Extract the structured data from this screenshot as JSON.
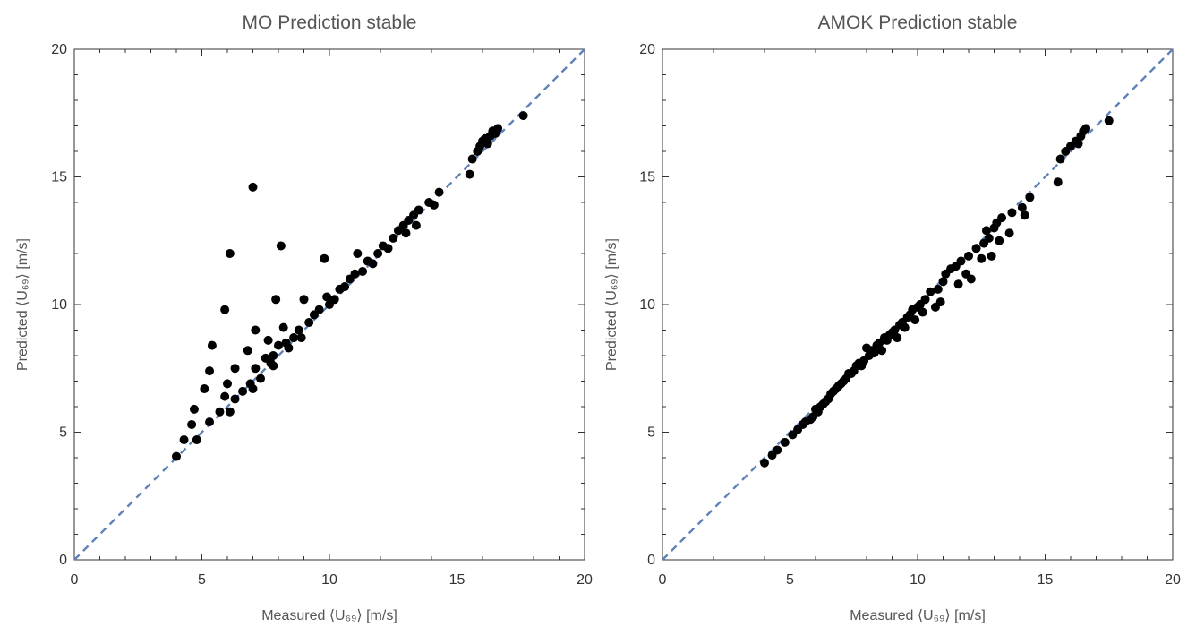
{
  "chart_data": [
    {
      "type": "scatter",
      "title": "MO Prediction stable",
      "xlabel": "Measured ⟨U₆₉⟩ [m/s]",
      "ylabel": "Predicted ⟨U₆₉⟩ [m/s]",
      "xlim": [
        0,
        20
      ],
      "ylim": [
        0,
        20
      ],
      "xticks": [
        0,
        5,
        10,
        15,
        20
      ],
      "yticks": [
        0,
        5,
        10,
        15,
        20
      ],
      "reference_line": "y = x, dashed, color #5f82b8",
      "grid": false,
      "legend": "none",
      "series": [
        {
          "marker_color": "#000000",
          "points": [
            [
              4.0,
              4.05
            ],
            [
              4.3,
              4.7
            ],
            [
              4.6,
              5.3
            ],
            [
              4.7,
              5.9
            ],
            [
              4.8,
              4.7
            ],
            [
              5.1,
              6.7
            ],
            [
              5.3,
              7.4
            ],
            [
              5.3,
              5.4
            ],
            [
              5.4,
              8.4
            ],
            [
              5.7,
              5.8
            ],
            [
              5.9,
              6.4
            ],
            [
              5.9,
              9.8
            ],
            [
              6.0,
              6.9
            ],
            [
              6.1,
              5.8
            ],
            [
              6.1,
              12.0
            ],
            [
              6.3,
              7.5
            ],
            [
              6.3,
              6.3
            ],
            [
              6.6,
              6.6
            ],
            [
              6.8,
              8.2
            ],
            [
              6.9,
              6.9
            ],
            [
              7.0,
              14.6
            ],
            [
              7.0,
              6.7
            ],
            [
              7.1,
              9.0
            ],
            [
              7.1,
              7.5
            ],
            [
              7.3,
              7.1
            ],
            [
              7.5,
              7.9
            ],
            [
              7.6,
              8.6
            ],
            [
              7.7,
              7.7
            ],
            [
              7.8,
              8.0
            ],
            [
              7.8,
              7.6
            ],
            [
              7.9,
              10.2
            ],
            [
              8.0,
              8.4
            ],
            [
              8.1,
              12.3
            ],
            [
              8.2,
              9.1
            ],
            [
              8.3,
              8.5
            ],
            [
              8.4,
              8.3
            ],
            [
              8.6,
              8.7
            ],
            [
              8.8,
              9.0
            ],
            [
              8.9,
              8.7
            ],
            [
              9.0,
              10.2
            ],
            [
              9.2,
              9.3
            ],
            [
              9.4,
              9.6
            ],
            [
              9.6,
              9.8
            ],
            [
              9.8,
              11.8
            ],
            [
              9.9,
              10.3
            ],
            [
              10.0,
              10.0
            ],
            [
              10.2,
              10.2
            ],
            [
              10.4,
              10.6
            ],
            [
              10.6,
              10.7
            ],
            [
              10.8,
              11.0
            ],
            [
              11.0,
              11.2
            ],
            [
              11.1,
              12.0
            ],
            [
              11.3,
              11.3
            ],
            [
              11.5,
              11.7
            ],
            [
              11.7,
              11.6
            ],
            [
              11.9,
              12.0
            ],
            [
              12.1,
              12.3
            ],
            [
              12.3,
              12.2
            ],
            [
              12.5,
              12.6
            ],
            [
              12.7,
              12.9
            ],
            [
              12.9,
              13.1
            ],
            [
              13.0,
              12.8
            ],
            [
              13.1,
              13.3
            ],
            [
              13.3,
              13.5
            ],
            [
              13.4,
              13.1
            ],
            [
              13.5,
              13.7
            ],
            [
              13.9,
              14.0
            ],
            [
              14.1,
              13.9
            ],
            [
              14.3,
              14.4
            ],
            [
              15.5,
              15.1
            ],
            [
              15.6,
              15.7
            ],
            [
              15.8,
              16.0
            ],
            [
              15.9,
              16.2
            ],
            [
              16.0,
              16.4
            ],
            [
              16.1,
              16.5
            ],
            [
              16.2,
              16.3
            ],
            [
              16.3,
              16.6
            ],
            [
              16.4,
              16.8
            ],
            [
              16.5,
              16.7
            ],
            [
              16.6,
              16.9
            ],
            [
              17.6,
              17.4
            ]
          ]
        }
      ]
    },
    {
      "type": "scatter",
      "title": "AMOK Prediction stable",
      "xlabel": "Measured ⟨U₆₉⟩ [m/s]",
      "ylabel": "Predicted ⟨U₆₉⟩ [m/s]",
      "xlim": [
        0,
        20
      ],
      "ylim": [
        0,
        20
      ],
      "xticks": [
        0,
        5,
        10,
        15,
        20
      ],
      "yticks": [
        0,
        5,
        10,
        15,
        20
      ],
      "reference_line": "y = x, dashed, color #5f82b8",
      "grid": false,
      "legend": "none",
      "series": [
        {
          "marker_color": "#000000",
          "points": [
            [
              4.0,
              3.8
            ],
            [
              4.3,
              4.1
            ],
            [
              4.5,
              4.3
            ],
            [
              4.8,
              4.6
            ],
            [
              5.1,
              4.9
            ],
            [
              5.3,
              5.1
            ],
            [
              5.5,
              5.3
            ],
            [
              5.6,
              5.4
            ],
            [
              5.8,
              5.5
            ],
            [
              5.9,
              5.6
            ],
            [
              6.0,
              5.9
            ],
            [
              6.1,
              5.8
            ],
            [
              6.2,
              6.0
            ],
            [
              6.3,
              6.1
            ],
            [
              6.4,
              6.2
            ],
            [
              6.5,
              6.3
            ],
            [
              6.6,
              6.5
            ],
            [
              6.7,
              6.6
            ],
            [
              6.8,
              6.7
            ],
            [
              6.9,
              6.8
            ],
            [
              7.0,
              6.9
            ],
            [
              7.1,
              7.0
            ],
            [
              7.2,
              7.1
            ],
            [
              7.3,
              7.3
            ],
            [
              7.4,
              7.3
            ],
            [
              7.5,
              7.4
            ],
            [
              7.6,
              7.6
            ],
            [
              7.7,
              7.7
            ],
            [
              7.8,
              7.6
            ],
            [
              7.9,
              7.8
            ],
            [
              8.0,
              8.3
            ],
            [
              8.1,
              8.0
            ],
            [
              8.2,
              8.2
            ],
            [
              8.3,
              8.1
            ],
            [
              8.4,
              8.4
            ],
            [
              8.5,
              8.5
            ],
            [
              8.6,
              8.2
            ],
            [
              8.7,
              8.7
            ],
            [
              8.8,
              8.6
            ],
            [
              8.9,
              8.8
            ],
            [
              9.0,
              8.9
            ],
            [
              9.1,
              9.0
            ],
            [
              9.2,
              8.7
            ],
            [
              9.3,
              9.2
            ],
            [
              9.4,
              9.3
            ],
            [
              9.5,
              9.1
            ],
            [
              9.6,
              9.5
            ],
            [
              9.7,
              9.6
            ],
            [
              9.8,
              9.8
            ],
            [
              9.9,
              9.4
            ],
            [
              10.0,
              9.9
            ],
            [
              10.1,
              10.0
            ],
            [
              10.2,
              9.7
            ],
            [
              10.3,
              10.2
            ],
            [
              10.5,
              10.5
            ],
            [
              10.7,
              9.9
            ],
            [
              10.8,
              10.6
            ],
            [
              10.9,
              10.1
            ],
            [
              11.0,
              10.9
            ],
            [
              11.1,
              11.2
            ],
            [
              11.3,
              11.4
            ],
            [
              11.5,
              11.5
            ],
            [
              11.6,
              10.8
            ],
            [
              11.7,
              11.7
            ],
            [
              11.9,
              11.2
            ],
            [
              12.0,
              11.9
            ],
            [
              12.1,
              11.0
            ],
            [
              12.3,
              12.2
            ],
            [
              12.5,
              11.8
            ],
            [
              12.6,
              12.4
            ],
            [
              12.7,
              12.9
            ],
            [
              12.8,
              12.6
            ],
            [
              12.9,
              11.9
            ],
            [
              13.0,
              13.0
            ],
            [
              13.1,
              13.2
            ],
            [
              13.2,
              12.5
            ],
            [
              13.3,
              13.4
            ],
            [
              13.6,
              12.8
            ],
            [
              13.7,
              13.6
            ],
            [
              14.1,
              13.8
            ],
            [
              14.2,
              13.5
            ],
            [
              14.4,
              14.2
            ],
            [
              15.5,
              14.8
            ],
            [
              15.6,
              15.7
            ],
            [
              15.8,
              16.0
            ],
            [
              16.0,
              16.2
            ],
            [
              16.2,
              16.4
            ],
            [
              16.3,
              16.3
            ],
            [
              16.4,
              16.6
            ],
            [
              16.5,
              16.8
            ],
            [
              16.6,
              16.9
            ],
            [
              17.5,
              17.2
            ]
          ]
        }
      ]
    }
  ]
}
